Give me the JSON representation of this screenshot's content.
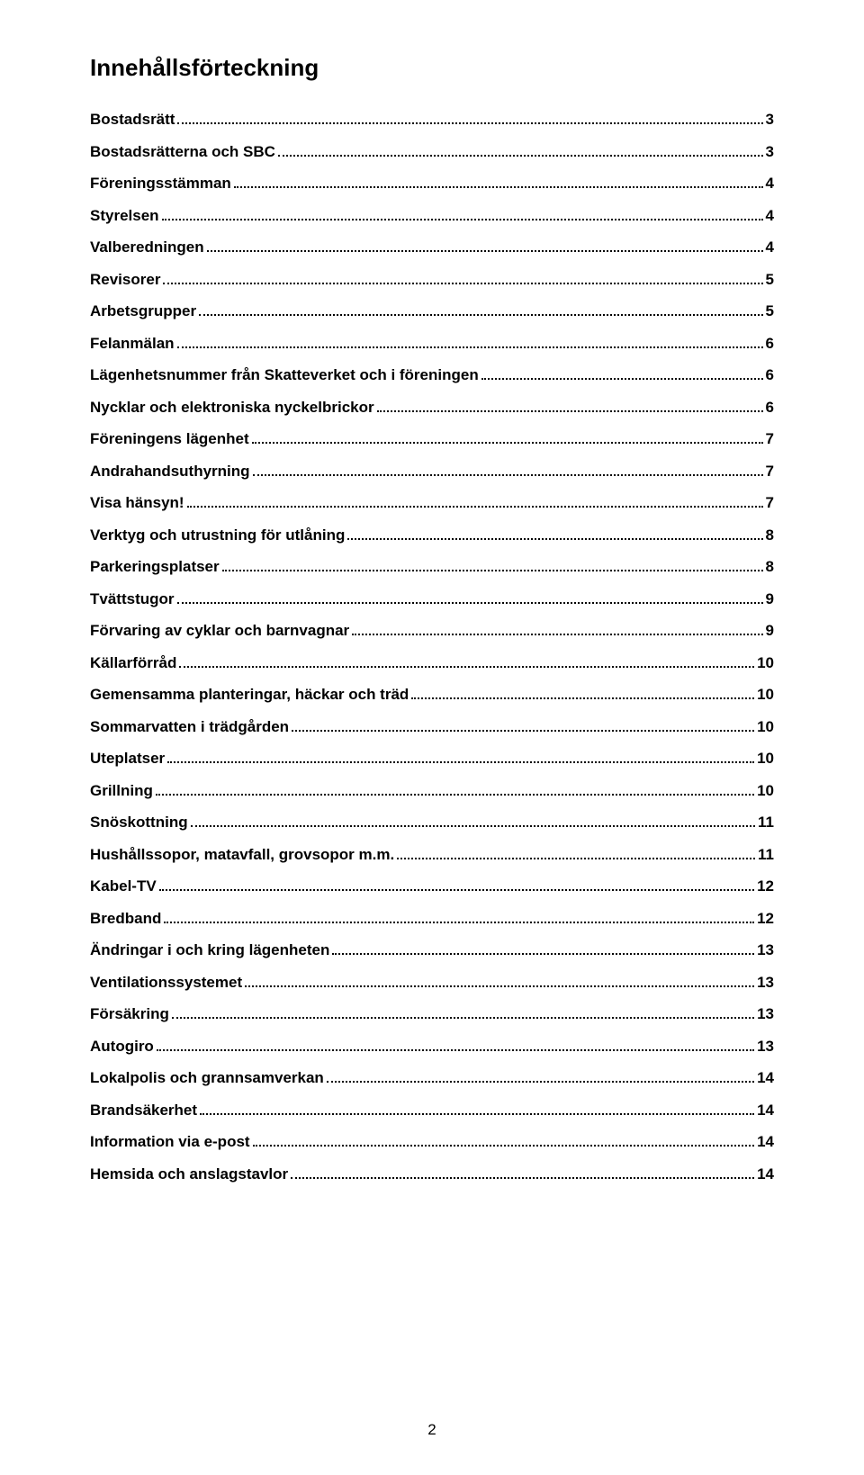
{
  "title": "Innehållsförteckning",
  "pageNumber": "2",
  "entries": [
    {
      "label": "Bostadsrätt",
      "page": "3"
    },
    {
      "label": "Bostadsrätterna och SBC",
      "page": "3"
    },
    {
      "label": "Föreningsstämman",
      "page": "4"
    },
    {
      "label": "Styrelsen",
      "page": "4"
    },
    {
      "label": "Valberedningen",
      "page": "4"
    },
    {
      "label": "Revisorer",
      "page": "5"
    },
    {
      "label": "Arbetsgrupper",
      "page": "5"
    },
    {
      "label": "Felanmälan",
      "page": "6"
    },
    {
      "label": "Lägenhetsnummer från Skatteverket och i föreningen",
      "page": "6"
    },
    {
      "label": "Nycklar och elektroniska nyckelbrickor",
      "page": "6"
    },
    {
      "label": "Föreningens lägenhet",
      "page": "7"
    },
    {
      "label": "Andrahandsuthyrning",
      "page": "7"
    },
    {
      "label": "Visa hänsyn!",
      "page": "7"
    },
    {
      "label": "Verktyg och utrustning för utlåning",
      "page": "8"
    },
    {
      "label": "Parkeringsplatser",
      "page": "8"
    },
    {
      "label": "Tvättstugor",
      "page": "9"
    },
    {
      "label": "Förvaring av cyklar och barnvagnar",
      "page": "9"
    },
    {
      "label": "Källarförråd",
      "page": "10"
    },
    {
      "label": "Gemensamma planteringar, häckar och träd",
      "page": "10"
    },
    {
      "label": "Sommarvatten i trädgården",
      "page": "10"
    },
    {
      "label": "Uteplatser",
      "page": "10"
    },
    {
      "label": "Grillning",
      "page": "10"
    },
    {
      "label": "Snöskottning",
      "page": "11"
    },
    {
      "label": "Hushållssopor, matavfall, grovsopor m.m.",
      "page": "11"
    },
    {
      "label": "Kabel-TV",
      "page": "12"
    },
    {
      "label": "Bredband",
      "page": "12"
    },
    {
      "label": "Ändringar i och kring lägenheten",
      "page": "13"
    },
    {
      "label": "Ventilationssystemet",
      "page": "13"
    },
    {
      "label": "Försäkring",
      "page": "13"
    },
    {
      "label": "Autogiro",
      "page": "13"
    },
    {
      "label": "Lokalpolis och grannsamverkan",
      "page": "14"
    },
    {
      "label": "Brandsäkerhet",
      "page": "14"
    },
    {
      "label": "Information via e-post",
      "page": "14"
    },
    {
      "label": "Hemsida och anslagstavlor",
      "page": "14"
    }
  ]
}
